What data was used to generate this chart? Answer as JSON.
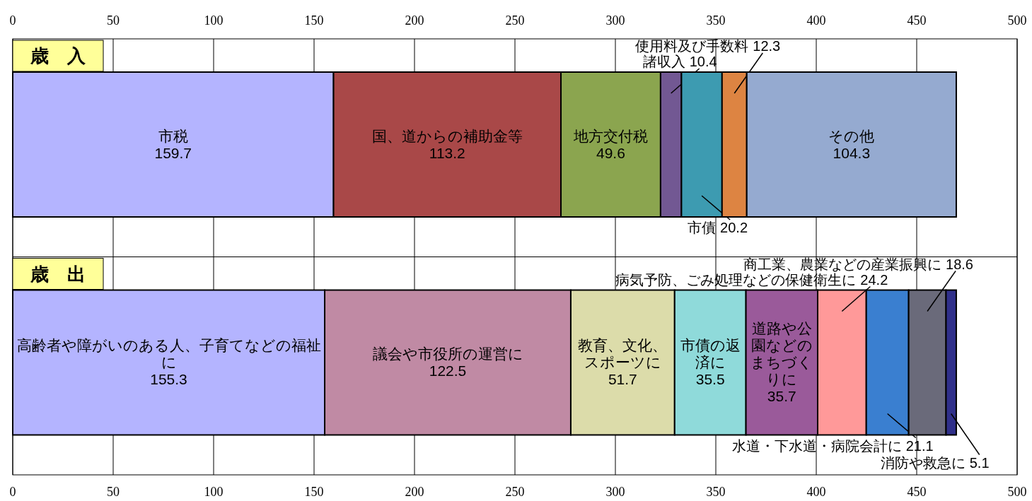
{
  "chart_data": {
    "type": "bar",
    "orientation": "horizontal",
    "stacked": true,
    "categories": [
      "歳　入",
      "歳　出"
    ],
    "xlim": [
      0,
      500
    ],
    "xticks": [
      0,
      50,
      100,
      150,
      200,
      250,
      300,
      350,
      400,
      450,
      500
    ],
    "x2lim": [
      0,
      500
    ],
    "x2ticks": [
      0,
      50,
      100,
      150,
      200,
      250,
      300,
      350,
      400,
      450,
      500
    ],
    "grid": "x",
    "legend": false,
    "data_labels": true,
    "series": [
      {
        "name": "市税",
        "color": "#b4b4ff",
        "values": [
          159.7,
          null
        ]
      },
      {
        "name": "国、道からの補助金等",
        "color": "#a94848",
        "values": [
          113.2,
          null
        ]
      },
      {
        "name": "地方交付税",
        "color": "#8ba54f",
        "values": [
          49.6,
          null
        ]
      },
      {
        "name": "諸収入",
        "color": "#725893",
        "values": [
          10.4,
          null
        ]
      },
      {
        "name": "市債",
        "color": "#3d9bb1",
        "values": [
          20.2,
          null
        ]
      },
      {
        "name": "使用料及び手数料",
        "color": "#dd8442",
        "values": [
          12.3,
          null
        ]
      },
      {
        "name": "その他",
        "color": "#95aad0",
        "values": [
          104.3,
          null
        ]
      },
      {
        "name": "高齢者や障がいのある人、子育てなどの福祉に",
        "color": "#b4b4ff",
        "values": [
          null,
          155.3
        ]
      },
      {
        "name": "議会や市役所の運営に",
        "color": "#c08aa4",
        "values": [
          null,
          122.5
        ]
      },
      {
        "name": "教育、文化、スポーツに",
        "color": "#dcdcaa",
        "values": [
          null,
          51.7
        ]
      },
      {
        "name": "市債の返済に",
        "color": "#8fdada",
        "values": [
          null,
          35.5
        ]
      },
      {
        "name": "道路や公園などのまちづくりに",
        "color": "#9a5a9a",
        "values": [
          null,
          35.7
        ]
      },
      {
        "name": "病気予防、ごみ処理などの保健衛生に",
        "color": "#ff9999",
        "values": [
          null,
          24.2
        ]
      },
      {
        "name": "水道・下水道・病院会計に",
        "color": "#3a7fd0",
        "values": [
          null,
          21.1
        ]
      },
      {
        "name": "商工業、農業などの産業振興に",
        "color": "#6a6a7a",
        "values": [
          null,
          18.6
        ]
      },
      {
        "name": "消防や救急に",
        "color": "#30308a",
        "values": [
          null,
          5.1
        ]
      }
    ]
  }
}
